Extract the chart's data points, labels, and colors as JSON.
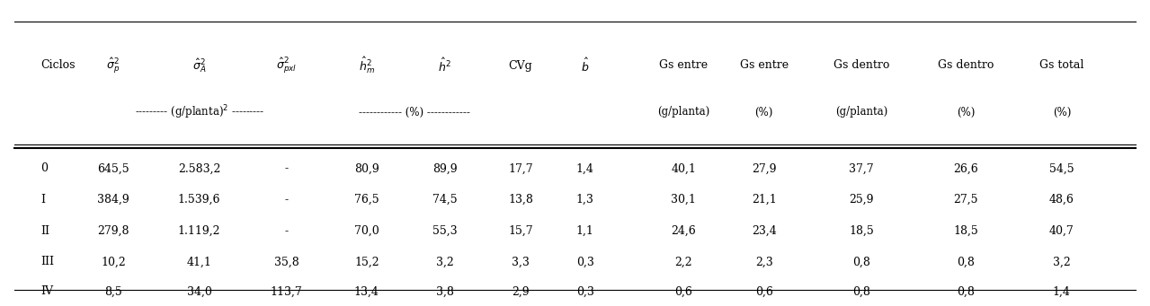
{
  "rows": [
    [
      "0",
      "645,5",
      "2.583,2",
      "-",
      "80,9",
      "89,9",
      "17,7",
      "1,4",
      "40,1",
      "27,9",
      "37,7",
      "26,6",
      "54,5"
    ],
    [
      "I",
      "384,9",
      "1.539,6",
      "-",
      "76,5",
      "74,5",
      "13,8",
      "1,3",
      "30,1",
      "21,1",
      "25,9",
      "27,5",
      "48,6"
    ],
    [
      "II",
      "279,8",
      "1.119,2",
      "-",
      "70,0",
      "55,3",
      "15,7",
      "1,1",
      "24,6",
      "23,4",
      "18,5",
      "18,5",
      "40,7"
    ],
    [
      "III",
      "10,2",
      "41,1",
      "35,8",
      "15,2",
      "3,2",
      "3,3",
      "0,3",
      "2,2",
      "2,3",
      "0,8",
      "0,8",
      "3,2"
    ],
    [
      "IV",
      "8,5",
      "34,0",
      "113,7",
      "13,4",
      "3,8",
      "2,9",
      "0,3",
      "0,6",
      "0,6",
      "0,8",
      "0,8",
      "1,4"
    ]
  ],
  "background_color": "#ffffff",
  "line_color": "#000000",
  "text_color": "#000000",
  "font_size": 9.0,
  "header_font_size": 9.0
}
